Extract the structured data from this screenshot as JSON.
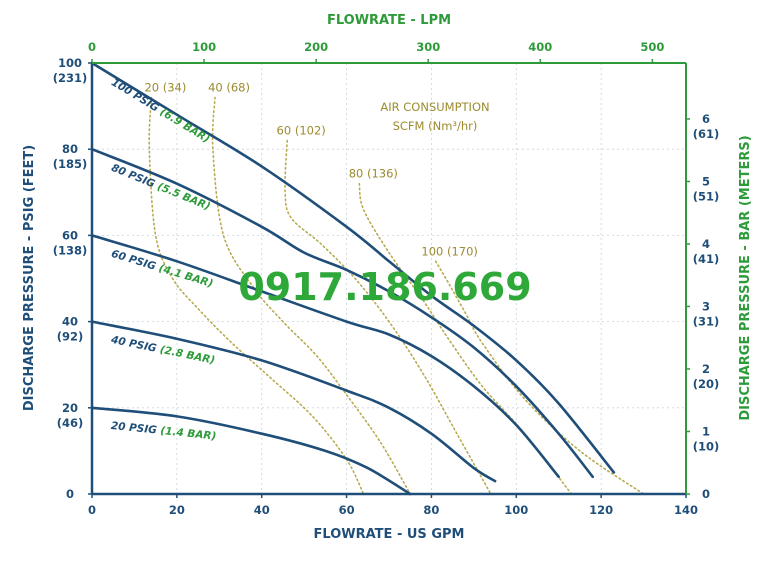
{
  "chart_data": {
    "type": "line",
    "title": "",
    "xlabel": "FLOWRATE - US GPM",
    "x2label": "FLOWRATE - LPM",
    "ylabel": "DISCHARGE PRESSURE - PSIG (FEET)",
    "y2label": "DISCHARGE PRESSURE - BAR (METERS)",
    "xlim": [
      0,
      140
    ],
    "ylim": [
      0,
      100
    ],
    "x2lim": [
      0,
      530
    ],
    "y2lim": [
      0,
      6.895
    ],
    "x_ticks": [
      "0",
      "20",
      "40",
      "60",
      "80",
      "100",
      "120",
      "140"
    ],
    "x2_ticks": [
      "0",
      "100",
      "200",
      "300",
      "400",
      "500"
    ],
    "y_ticks": [
      {
        "value": 0,
        "main": "0",
        "sub": ""
      },
      {
        "value": 20,
        "main": "20",
        "sub": "(46)"
      },
      {
        "value": 40,
        "main": "40",
        "sub": "(92)"
      },
      {
        "value": 60,
        "main": "60",
        "sub": "(138)"
      },
      {
        "value": 80,
        "main": "80",
        "sub": "(185)"
      },
      {
        "value": 100,
        "main": "100",
        "sub": "(231)"
      }
    ],
    "y2_ticks": [
      {
        "value": 0,
        "main": "0",
        "sub": ""
      },
      {
        "value": 1,
        "main": "1",
        "sub": "(10)"
      },
      {
        "value": 2,
        "main": "2",
        "sub": "(20)"
      },
      {
        "value": 3,
        "main": "3",
        "sub": "(31)"
      },
      {
        "value": 4,
        "main": "4",
        "sub": "(41)"
      },
      {
        "value": 5,
        "main": "5",
        "sub": "(51)"
      },
      {
        "value": 6,
        "main": "6",
        "sub": "(61)"
      }
    ],
    "series": [
      {
        "name": "100 PSIG",
        "name_bar": "(6.9 BAR)",
        "x": [
          0,
          20,
          40,
          60,
          70,
          80,
          90,
          100,
          110,
          123
        ],
        "y": [
          100,
          88,
          76,
          62,
          54,
          46,
          39,
          31,
          21,
          5
        ]
      },
      {
        "name": "80 PSIG",
        "name_bar": "(5.5 BAR)",
        "x": [
          0,
          20,
          40,
          50,
          60,
          70,
          80,
          90,
          100,
          110,
          118
        ],
        "y": [
          80,
          72,
          62,
          56,
          52,
          47,
          41,
          34,
          25,
          14,
          4
        ]
      },
      {
        "name": "60 PSIG",
        "name_bar": "(4.1 BAR)",
        "x": [
          0,
          20,
          40,
          60,
          70,
          80,
          90,
          100,
          110
        ],
        "y": [
          60,
          54,
          47,
          40,
          37,
          32,
          25,
          16,
          4
        ]
      },
      {
        "name": "40 PSIG",
        "name_bar": "(2.8 BAR)",
        "x": [
          0,
          20,
          40,
          60,
          70,
          80,
          90,
          95
        ],
        "y": [
          40,
          36,
          31,
          24,
          20,
          14,
          6,
          3
        ]
      },
      {
        "name": "20 PSIG",
        "name_bar": "(1.4 BAR)",
        "x": [
          0,
          20,
          40,
          55,
          65,
          75
        ],
        "y": [
          20,
          18,
          14,
          10,
          6,
          0
        ]
      }
    ],
    "air_consumption": {
      "title": "AIR CONSUMPTION",
      "units": "SCFM (Nm³/hr)",
      "curves": [
        {
          "label": "20 (34)",
          "x": [
            14,
            13.5,
            15,
            19,
            25,
            33,
            42,
            52,
            60,
            64
          ],
          "y": [
            92,
            80,
            60,
            50,
            43,
            35,
            27,
            18,
            8,
            0
          ]
        },
        {
          "label": "40 (68)",
          "x": [
            29,
            28.5,
            31,
            38,
            45,
            53,
            60,
            68,
            75
          ],
          "y": [
            92,
            80,
            60,
            48,
            40,
            32,
            23,
            12,
            0
          ]
        },
        {
          "label": "60 (102)",
          "x": [
            46,
            45.5,
            47,
            54,
            62,
            70,
            78,
            86,
            94
          ],
          "y": [
            82,
            70,
            64,
            58,
            50,
            40,
            28,
            14,
            0
          ]
        },
        {
          "label": "80 (136)",
          "x": [
            63,
            64,
            70,
            78,
            84,
            92,
            102,
            113
          ],
          "y": [
            72,
            66,
            56,
            45,
            36,
            25,
            14,
            0
          ]
        },
        {
          "label": "100 (170)",
          "x": [
            81,
            84,
            88,
            92,
            102,
            115,
            130
          ],
          "y": [
            54,
            49,
            42,
            35,
            22,
            10,
            0
          ]
        }
      ]
    },
    "watermark": "0917.186.669"
  },
  "colors": {
    "curve": "#1f4e79",
    "secondary_axis": "#2e9b3a",
    "air_curve": "#b7aa50",
    "air_label": "#9c8b2e",
    "watermark": "#2fa83a"
  }
}
